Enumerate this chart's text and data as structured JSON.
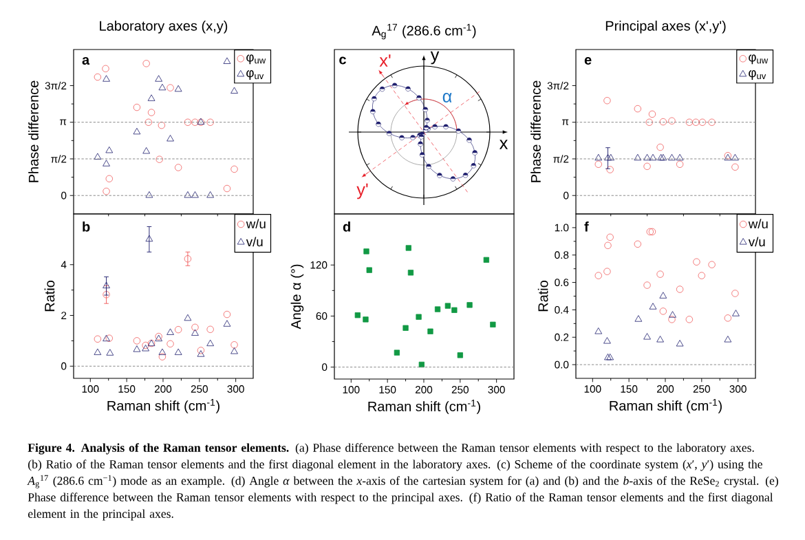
{
  "chart_data": [
    {
      "type": "scatter",
      "title": "Laboratory axes (x,y)",
      "ylabel": "Phase difference",
      "xlim": [
        77,
        324
      ],
      "xticks": [
        100,
        150,
        200,
        250,
        300
      ],
      "ylim": [
        -0.79,
        6.26
      ],
      "yticks": [
        0,
        {
          "value": 1.5708,
          "label": "π/2"
        },
        {
          "value": 3.1416,
          "label": "π"
        },
        {
          "value": 4.7124,
          "label": "3π/2"
        }
      ],
      "tick_labels": "y",
      "legend": "top right",
      "annotations": [
        "a"
      ],
      "ref_lines": [
        {
          "axis": "y",
          "value": 0,
          "line_style": "dashed",
          "color": "#808080"
        },
        {
          "axis": "y",
          "value": 1.5708,
          "line_style": "dashed",
          "color": "#808080"
        },
        {
          "axis": "y",
          "value": 3.1416,
          "line_style": "dashed",
          "color": "#808080"
        }
      ],
      "series": [
        {
          "name": "φ$_{uw}$",
          "color": "#f05a5a",
          "marker": "circle",
          "x": [
            110,
            121,
            126,
            122,
            164,
            177,
            180,
            184,
            198,
            195,
            210,
            221,
            234,
            244,
            252,
            265,
            288,
            298
          ],
          "values": [
            5.08,
            5.44,
            0.72,
            0.18,
            3.78,
            5.66,
            3.14,
            3.56,
            3.01,
            1.55,
            4.62,
            1.2,
            3.14,
            3.14,
            3.14,
            3.14,
            0.3,
            1.13
          ]
        },
        {
          "name": "φ$_{uv}$",
          "color": "#1f1f6e",
          "marker": "triangle",
          "x": [
            110,
            122,
            126,
            122,
            164,
            177,
            184,
            194,
            199,
            210,
            221,
            181,
            234,
            244,
            252,
            265,
            288,
            298
          ],
          "values": [
            1.64,
            1.35,
            1.92,
            4.98,
            2.72,
            1.89,
            4.15,
            4.98,
            4.61,
            2.42,
            4.55,
            0,
            0,
            0,
            3.14,
            0,
            5.74,
            4.47
          ]
        }
      ]
    },
    {
      "type": "other",
      "title": "A$_{g}$$^{17}$ (286.6 cm$^{-1}$)",
      "annotations": [
        "c",
        "x",
        "y",
        "x'",
        "y'",
        "α"
      ]
    },
    {
      "type": "scatter",
      "title": "Principal axes (x',y')",
      "ylabel": "Phase difference",
      "xlim": [
        77,
        324
      ],
      "xticks": [
        100,
        150,
        200,
        250,
        300
      ],
      "ylim": [
        -0.79,
        6.26
      ],
      "yticks": [
        0,
        {
          "value": 1.5708,
          "label": "π/2"
        },
        {
          "value": 3.1416,
          "label": "π"
        },
        {
          "value": 4.7124,
          "label": "3π/2"
        }
      ],
      "tick_labels": "y",
      "legend": "top right",
      "annotations": [
        "e"
      ],
      "ref_lines": [
        {
          "axis": "y",
          "value": 0,
          "line_style": "dashed",
          "color": "#808080"
        },
        {
          "axis": "y",
          "value": 1.5708,
          "line_style": "dashed",
          "color": "#808080"
        },
        {
          "axis": "y",
          "value": 3.1416,
          "line_style": "dashed",
          "color": "#808080"
        }
      ],
      "series": [
        {
          "name": "φ$_{uw}$",
          "color": "#f05a5a",
          "marker": "circle",
          "x": [
            108,
            120,
            124,
            162,
            178,
            182,
            193,
            197,
            209,
            175,
            220,
            233,
            242,
            251,
            264,
            286,
            296
          ],
          "values": [
            1.34,
            4.07,
            1.11,
            3.72,
            3.14,
            3.49,
            2.07,
            3.16,
            3.2,
            1.25,
            1.34,
            3.14,
            3.14,
            3.14,
            3.14,
            1.71,
            1.22
          ]
        },
        {
          "name": "φ$_{uv}$",
          "color": "#1f1f6e",
          "marker": "triangle",
          "x": [
            108,
            121,
            125,
            162,
            175,
            183,
            194,
            197,
            209,
            220,
            286,
            296
          ],
          "values": [
            1.6,
            1.6,
            1.6,
            1.6,
            1.6,
            1.6,
            1.6,
            1.6,
            1.6,
            1.6,
            1.6,
            1.6
          ],
          "errors": [
            null,
            0.45,
            null,
            null,
            null,
            null,
            null,
            null,
            null,
            null,
            null,
            null
          ]
        }
      ]
    },
    {
      "type": "scatter",
      "xlabel": "Raman shift (cm$^{-1}$)",
      "ylabel": "Ratio",
      "xlim": [
        77,
        324
      ],
      "xticks": [
        100,
        150,
        200,
        250,
        300
      ],
      "ylim": [
        -0.48,
        6.0
      ],
      "yticks": [
        0,
        2,
        4
      ],
      "legend": "top right",
      "annotations": [
        "b"
      ],
      "ref_lines": [
        {
          "axis": "y",
          "value": 0,
          "line_style": "dashed",
          "color": "#808080"
        }
      ],
      "series": [
        {
          "name": "w/u",
          "color": "#f05a5a",
          "marker": "circle",
          "x": [
            110,
            122,
            126,
            164,
            176,
            184,
            194,
            199,
            210,
            221,
            234,
            244,
            252,
            265,
            288,
            298
          ],
          "values": [
            1.07,
            2.82,
            1.1,
            1.0,
            0.82,
            0.9,
            1.17,
            0.37,
            0.88,
            1.44,
            4.23,
            1.53,
            0.62,
            1.45,
            2.04,
            0.84
          ],
          "errors": [
            null,
            0.35,
            null,
            null,
            null,
            null,
            null,
            null,
            null,
            null,
            0.27,
            null,
            null,
            null,
            null,
            null
          ]
        },
        {
          "name": "v/u",
          "color": "#1f1f6e",
          "marker": "triangle",
          "x": [
            110,
            122,
            122,
            127,
            164,
            176,
            184,
            181,
            194,
            199,
            210,
            221,
            234,
            244,
            252,
            265,
            288,
            298
          ],
          "values": [
            0.53,
            3.16,
            1.07,
            0.51,
            0.65,
            0.68,
            0.88,
            5.0,
            1.07,
            0.53,
            1.32,
            0.53,
            1.88,
            1.29,
            0.46,
            0.88,
            1.65,
            0.57
          ],
          "errors": [
            null,
            0.36,
            null,
            null,
            null,
            null,
            null,
            0.5,
            null,
            null,
            null,
            null,
            null,
            null,
            null,
            null,
            null,
            null
          ]
        }
      ]
    },
    {
      "type": "scatter",
      "xlabel": "Raman shift (cm$^{-1}$)",
      "ylabel": "Angle α (°)",
      "xlim": [
        77,
        324
      ],
      "xticks": [
        100,
        150,
        200,
        250,
        300
      ],
      "ylim": [
        -14,
        180
      ],
      "yticks": [
        0,
        60,
        120
      ],
      "annotations": [
        "d"
      ],
      "ref_lines": [
        {
          "axis": "y",
          "value": 0,
          "line_style": "dashed",
          "color": "#808080"
        }
      ],
      "series": [
        {
          "color": "#119944",
          "marker": "square",
          "x": [
            109,
            121,
            120,
            125,
            163,
            175,
            179,
            182,
            193,
            197,
            209,
            219,
            233,
            242,
            250,
            263,
            286,
            295
          ],
          "values": [
            61,
            136,
            56,
            114,
            17,
            46,
            140,
            111,
            59,
            3,
            42,
            68,
            72,
            67,
            14,
            73,
            126,
            50
          ]
        }
      ]
    },
    {
      "type": "scatter",
      "xlabel": "Raman shift (cm$^{-1}$)",
      "ylabel": "Ratio",
      "xlim": [
        77,
        324
      ],
      "xticks": [
        100,
        150,
        200,
        250,
        300
      ],
      "ylim": [
        -0.1,
        1.1
      ],
      "yticks": [
        {
          "value": 0,
          "label": "0.0"
        },
        0.2,
        0.4,
        0.6,
        0.8,
        {
          "value": 1,
          "label": "1.0"
        }
      ],
      "legend": "top right",
      "annotations": [
        "f",
        "**Figure 4. Analysis of the Raman tensor elements.** (a) Phase difference between the Raman tensor elements with respect to the laboratory axes. (b) Ratio of the Raman tensor elements and the first diagonal element in the laboratory axes. (c) Scheme of the coordinate system (*x*′, *y*′) using the *A*$_{g}$$^{17}$ (286.6 cm$^{−1}$) mode as an example. (d) Angle *α* between the *x*-axis of the cartesian system for (a) and (b) and the *b*-axis of the ReSe$_{2}$ crystal. (e) Phase difference between the Raman tensor elements with respect to the principal axes. (f) Ratio of the Raman tensor elements and the first diagonal element in the principal axes."
      ],
      "ref_lines": [
        {
          "axis": "y",
          "value": 0,
          "line_style": "dashed",
          "color": "#808080"
        }
      ],
      "series": [
        {
          "name": "w/u",
          "color": "#f05a5a",
          "marker": "circle",
          "x": [
            108,
            121,
            120,
            124,
            162,
            175,
            179,
            182,
            193,
            197,
            209,
            220,
            233,
            243,
            250,
            264,
            286,
            296
          ],
          "values": [
            0.65,
            0.87,
            0.68,
            0.93,
            0.88,
            0.58,
            0.97,
            0.97,
            0.66,
            0.39,
            0.33,
            0.55,
            0.33,
            0.75,
            0.65,
            0.73,
            0.34,
            0.52
          ]
        },
        {
          "name": "v/u",
          "color": "#1f1f6e",
          "marker": "triangle",
          "x": [
            108,
            120,
            121,
            124,
            163,
            175,
            183,
            193,
            197,
            210,
            220,
            286,
            297
          ],
          "values": [
            0.24,
            0.17,
            0.05,
            0.05,
            0.33,
            0.2,
            0.42,
            0.18,
            0.5,
            0.36,
            0.15,
            0.18,
            0.37
          ]
        }
      ]
    }
  ]
}
